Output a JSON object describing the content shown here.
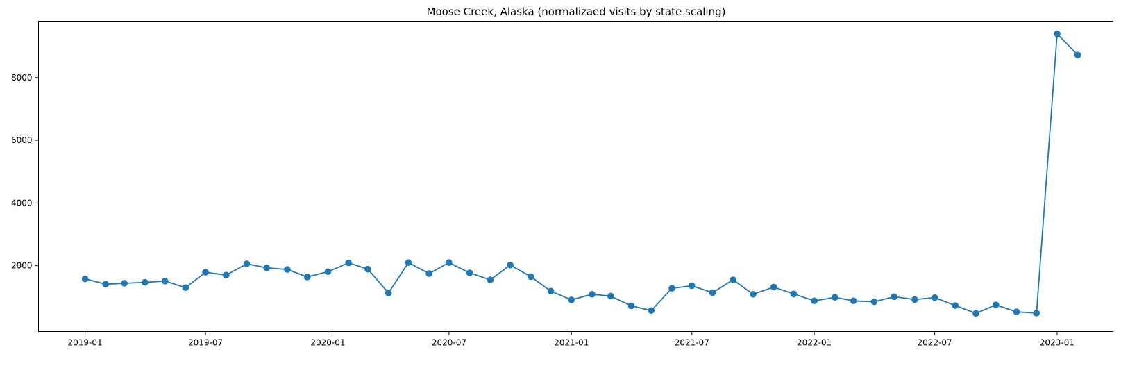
{
  "chart_data": {
    "type": "line",
    "title": "Moose Creek, Alaska (normalizaed visits by state scaling)",
    "xlabel": "",
    "ylabel": "",
    "x_tick_labels": [
      "2019-01",
      "2019-07",
      "2020-01",
      "2020-07",
      "2021-01",
      "2021-07",
      "2022-01",
      "2022-07",
      "2023-01"
    ],
    "y_tick_labels": [
      "2000",
      "4000",
      "6000",
      "8000"
    ],
    "y_ticks": [
      2000,
      4000,
      6000,
      8000
    ],
    "ylim": [
      -100,
      9800
    ],
    "xlim": [
      "2018-10-23",
      "2023-03-26"
    ],
    "grid": false,
    "marker": "circle",
    "color": "#1f77b4",
    "x": [
      "2019-01-01",
      "2019-02-01",
      "2019-03-01",
      "2019-04-01",
      "2019-05-01",
      "2019-06-01",
      "2019-07-01",
      "2019-08-01",
      "2019-09-01",
      "2019-10-01",
      "2019-11-01",
      "2019-12-01",
      "2020-01-01",
      "2020-02-01",
      "2020-03-01",
      "2020-04-01",
      "2020-05-01",
      "2020-06-01",
      "2020-07-01",
      "2020-08-01",
      "2020-09-01",
      "2020-10-01",
      "2020-11-01",
      "2020-12-01",
      "2021-01-01",
      "2021-02-01",
      "2021-03-01",
      "2021-04-01",
      "2021-05-01",
      "2021-06-01",
      "2021-07-01",
      "2021-08-01",
      "2021-09-01",
      "2021-10-01",
      "2021-11-01",
      "2021-12-01",
      "2022-01-01",
      "2022-02-01",
      "2022-03-01",
      "2022-04-01",
      "2022-05-01",
      "2022-06-01",
      "2022-07-01",
      "2022-08-01",
      "2022-09-01",
      "2022-10-01",
      "2022-11-01",
      "2022-12-01",
      "2023-01-01",
      "2023-02-01"
    ],
    "values": [
      1580,
      1410,
      1440,
      1470,
      1510,
      1300,
      1790,
      1700,
      2060,
      1930,
      1880,
      1640,
      1810,
      2090,
      1890,
      1130,
      2100,
      1750,
      2100,
      1770,
      1550,
      2020,
      1650,
      1190,
      910,
      1090,
      1030,
      720,
      570,
      1280,
      1360,
      1140,
      1550,
      1090,
      1320,
      1100,
      880,
      990,
      880,
      850,
      1010,
      920,
      980,
      730,
      480,
      750,
      530,
      490,
      9400,
      8720
    ]
  }
}
